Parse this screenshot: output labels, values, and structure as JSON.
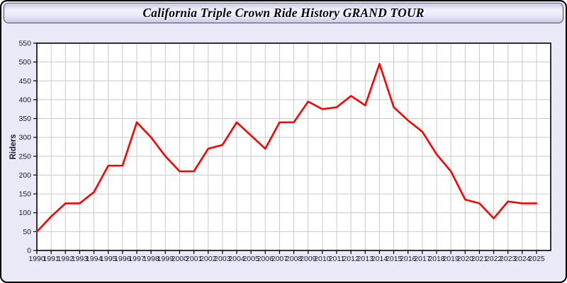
{
  "title": "California Triple Crown Ride History GRAND TOUR",
  "chart_data": {
    "type": "line",
    "title": "California Triple Crown Ride History GRAND TOUR",
    "xlabel": "",
    "ylabel": "Riders",
    "x": [
      1990,
      1991,
      1992,
      1993,
      1994,
      1995,
      1996,
      1997,
      1998,
      1999,
      2000,
      2001,
      2002,
      2003,
      2004,
      2005,
      2006,
      2007,
      2008,
      2009,
      2010,
      2011,
      2012,
      2013,
      2014,
      2015,
      2016,
      2017,
      2018,
      2019,
      2020,
      2021,
      2022,
      2023,
      2024,
      2025
    ],
    "series": [
      {
        "name": "Riders",
        "color": "#ff0000",
        "values": [
          50,
          90,
          125,
          125,
          155,
          225,
          225,
          340,
          300,
          250,
          210,
          210,
          270,
          280,
          340,
          305,
          270,
          340,
          340,
          395,
          375,
          380,
          410,
          385,
          495,
          380,
          345,
          315,
          255,
          210,
          135,
          125,
          85,
          130,
          125,
          125
        ]
      }
    ],
    "ylim": [
      0,
      550
    ],
    "yticks": [
      0,
      50,
      100,
      150,
      200,
      250,
      300,
      350,
      400,
      450,
      500,
      550
    ],
    "grid": true,
    "legend": false
  },
  "colors": {
    "line": "#ff0000",
    "widget_background": "#e9e9f8",
    "plot_background": "#ffffff",
    "grid": "#c9c9c9",
    "axis_border": "#000000",
    "tick_label": "#1a1a2e",
    "title_text": "#06060f"
  }
}
